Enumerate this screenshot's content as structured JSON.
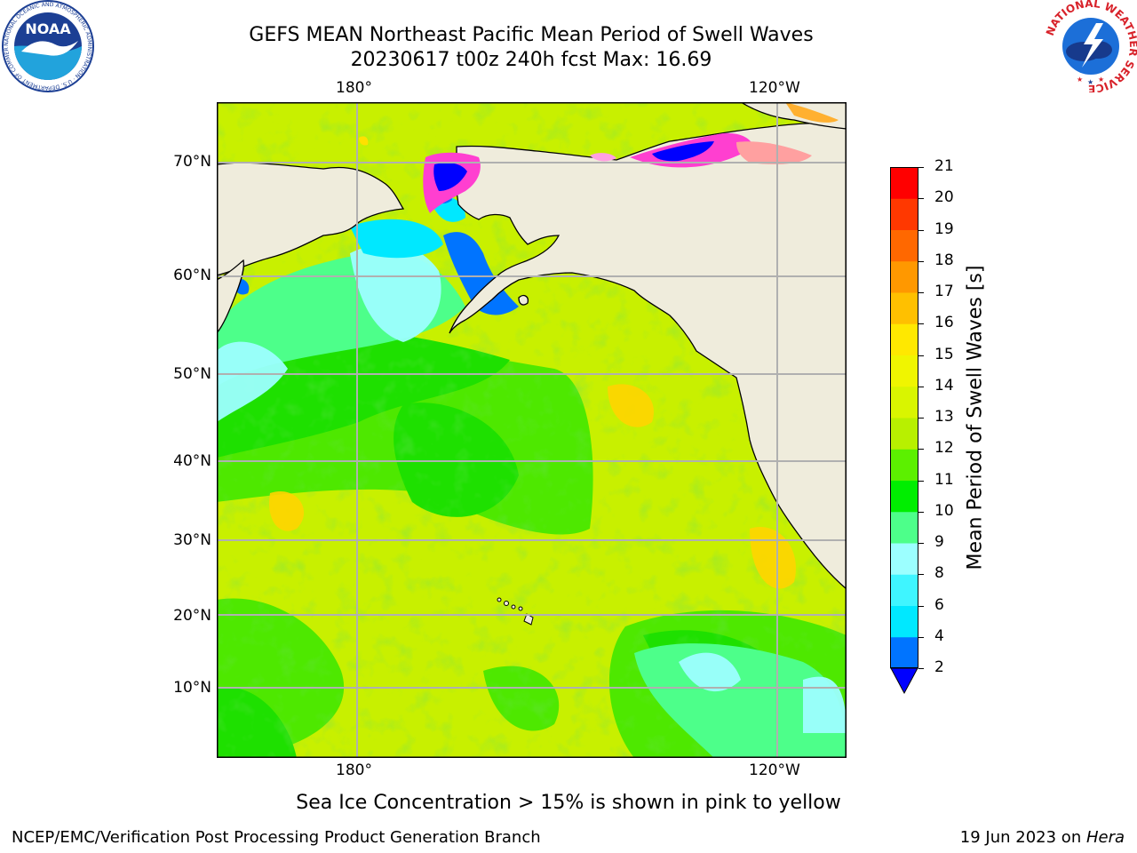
{
  "header": {
    "title_line1": "GEFS MEAN Northeast Pacific Mean Period of Swell Waves",
    "title_line2": "20230617 t00z 240h fcst   Max: 16.69"
  },
  "logos": {
    "noaa_text": "NOAA",
    "noaa_ring_text": "NATIONAL OCEANIC AND ATMOSPHERIC ADMINISTRATION · U.S. DEPARTMENT OF COMMERCE",
    "nws_ring_text": "NATIONAL WEATHER SERVICE"
  },
  "map": {
    "lon_labels_top": [
      "180°",
      "120°W"
    ],
    "lon_labels_bottom": [
      "180°",
      "120°W"
    ],
    "lat_labels": [
      "70°N",
      "60°N",
      "50°N",
      "40°N",
      "30°N",
      "20°N",
      "10°N"
    ],
    "colors": {
      "land": "#efecdc",
      "grid": "#b0b0b0",
      "coast": "#000000"
    }
  },
  "colorbar": {
    "label": "Mean Period of Swell Waves [s]",
    "ticks": [
      "2",
      "4",
      "6",
      "8",
      "9",
      "10",
      "11",
      "12",
      "13",
      "14",
      "15",
      "16",
      "17",
      "18",
      "19",
      "20",
      "21"
    ],
    "colors": [
      "#0074ff",
      "#00e8ff",
      "#3ff5ff",
      "#9cffff",
      "#4dff8a",
      "#00ee00",
      "#5cf000",
      "#b8f000",
      "#d9f500",
      "#f0f500",
      "#ffe800",
      "#ffc000",
      "#ff9800",
      "#ff6800",
      "#ff3800",
      "#ff0000"
    ],
    "under_color": "#0000ff"
  },
  "footer": {
    "note": "Sea Ice Concentration > 15% is shown in pink to yellow",
    "branch": "NCEP/EMC/Verification Post Processing Product Generation Branch",
    "date": "19 Jun 2023 on ",
    "machine": "Hera"
  }
}
